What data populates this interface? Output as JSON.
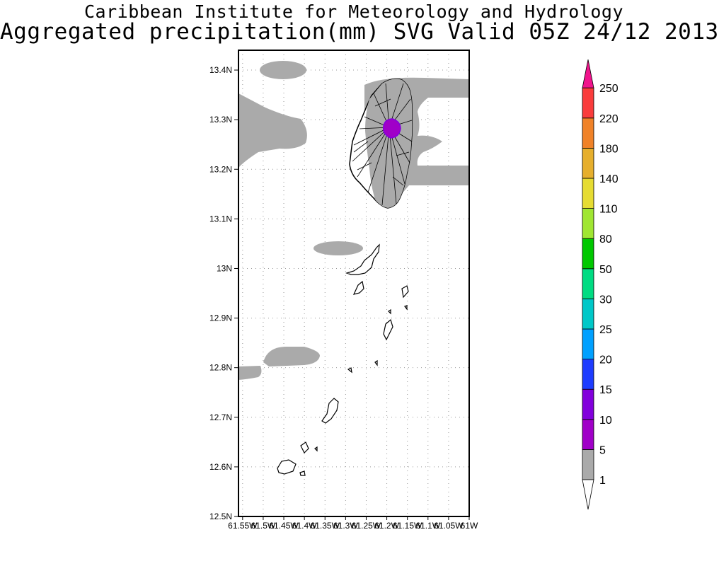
{
  "title": {
    "line1": "Caribbean Institute for Meteorology and Hydrology",
    "line2": "Aggregated precipitation(mm) SVG Valid 05Z 24/12 2013"
  },
  "map": {
    "lat_range": [
      12.5,
      13.44
    ],
    "lon_range": [
      -61.56,
      -61.0
    ],
    "lat_ticks": [
      "13.4N",
      "13.3N",
      "13.2N",
      "13.1N",
      "13N",
      "12.9N",
      "12.8N",
      "12.7N",
      "12.6N",
      "12.5N"
    ],
    "lon_ticks": [
      "61.55W",
      "61.5W",
      "61.45W",
      "61.4W",
      "61.35W",
      "61.3W",
      "61.25W",
      "61.2W",
      "61.15W",
      "61.1W",
      "61.05W",
      "61W"
    ],
    "grid": true
  },
  "colorbar": {
    "levels": [
      "1",
      "5",
      "10",
      "15",
      "20",
      "25",
      "30",
      "50",
      "80",
      "110",
      "140",
      "180",
      "220",
      "250"
    ],
    "colors": [
      "#aaaaaa",
      "#a000c8",
      "#8200dc",
      "#1e3cff",
      "#00a0ff",
      "#00c8c8",
      "#00dc82",
      "#00c800",
      "#a0e632",
      "#e6dc32",
      "#e6af2d",
      "#f08228",
      "#fa3c3c",
      "#f0148c"
    ]
  }
}
